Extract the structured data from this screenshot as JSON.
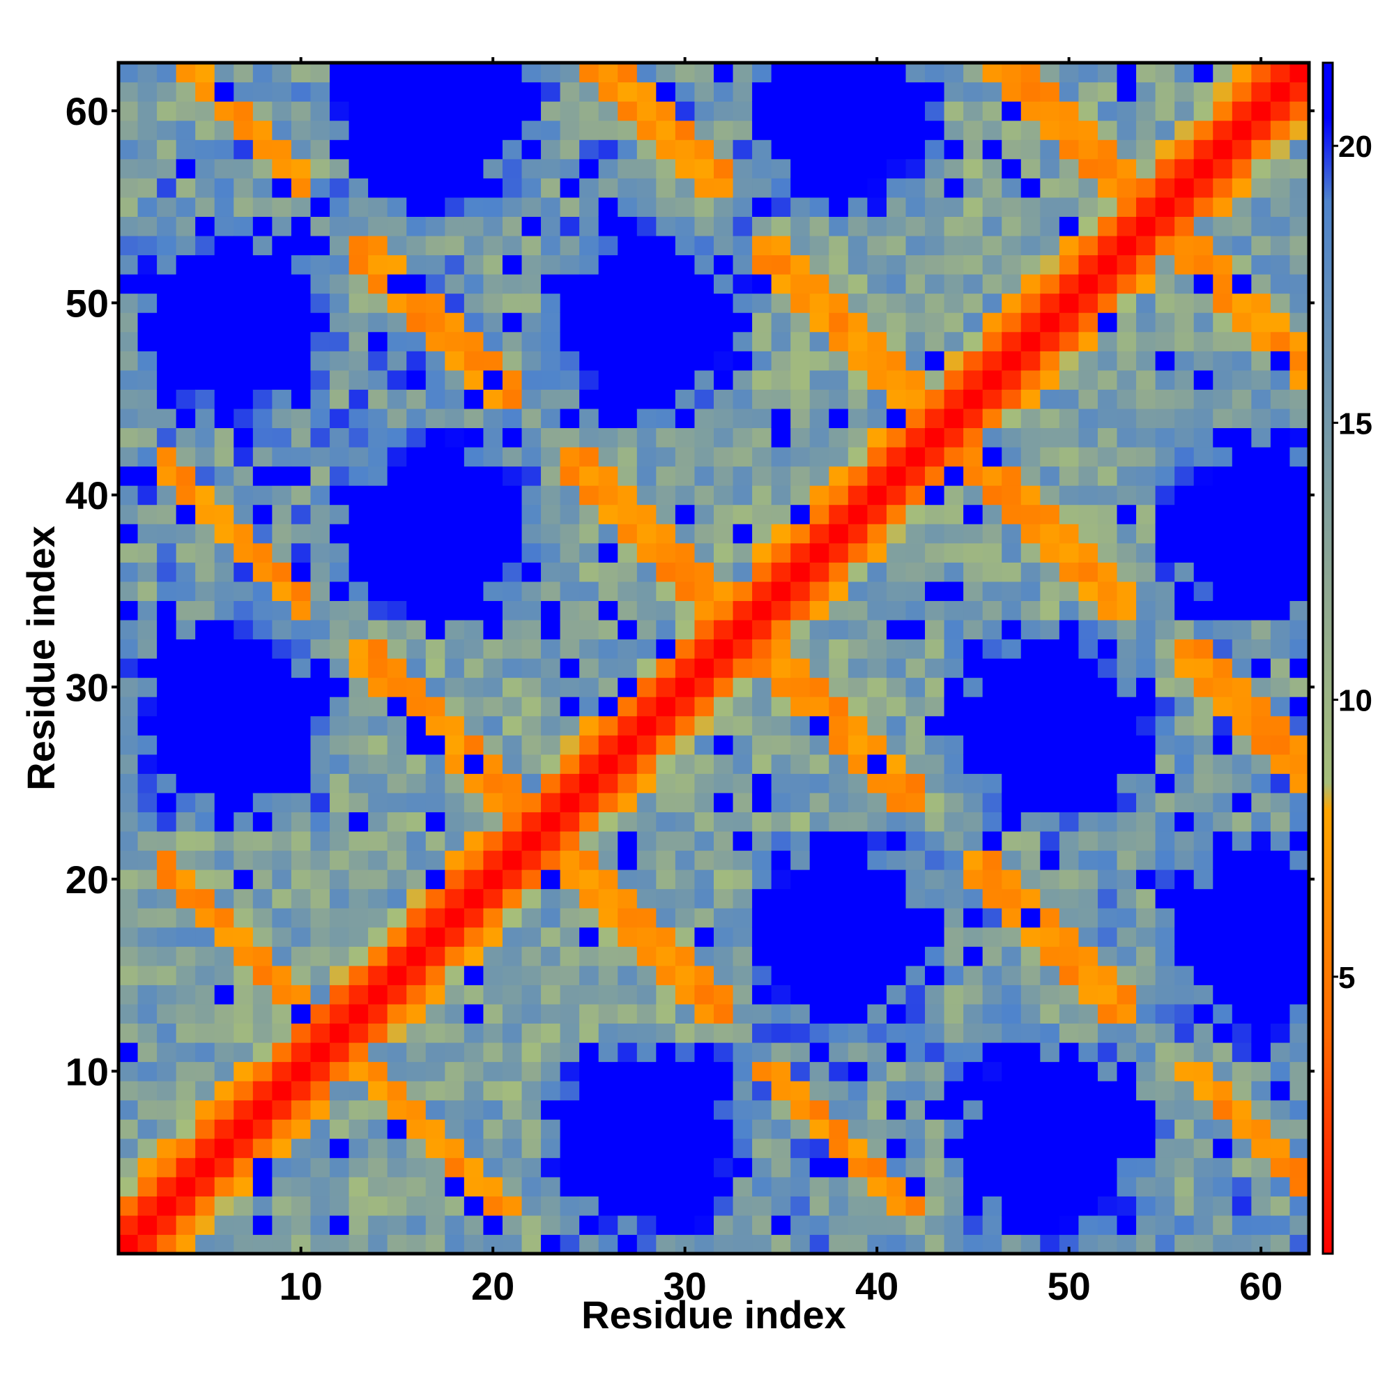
{
  "chart_data": {
    "type": "heatmap",
    "title": "",
    "xlabel": "Residue index",
    "ylabel": "Residue index",
    "n": 62,
    "x_ticks": [
      10,
      20,
      30,
      40,
      50,
      60
    ],
    "y_ticks": [
      10,
      20,
      30,
      40,
      50,
      60
    ],
    "xlim": [
      0.5,
      62.5
    ],
    "ylim": [
      0.5,
      62.5
    ],
    "colorbar": {
      "range": [
        0,
        21.5
      ],
      "ticks": [
        5,
        10,
        15,
        20
      ],
      "stops": [
        {
          "value": 0,
          "color": "#ff0000"
        },
        {
          "value": 4,
          "color": "#ff6a00"
        },
        {
          "value": 8,
          "color": "#ffa500"
        },
        {
          "value": 8.5,
          "color": "#a6be7a"
        },
        {
          "value": 12,
          "color": "#8fa892"
        },
        {
          "value": 16,
          "color": "#6a93b2"
        },
        {
          "value": 19,
          "color": "#4f84cc"
        },
        {
          "value": 20.5,
          "color": "#0000ff"
        }
      ]
    },
    "value_model": {
      "description_units": "distance",
      "centers": [
        6.5,
        17,
        28,
        38,
        49,
        60
      ],
      "diagonal_value": 0,
      "far_value": 21,
      "near_band": [
        1,
        8
      ],
      "same_parity_block": 21,
      "note_pattern": "blocks where both residues sit in same-parity segments are far (>20)"
    },
    "grid": false,
    "legend": "colorbar-right"
  }
}
